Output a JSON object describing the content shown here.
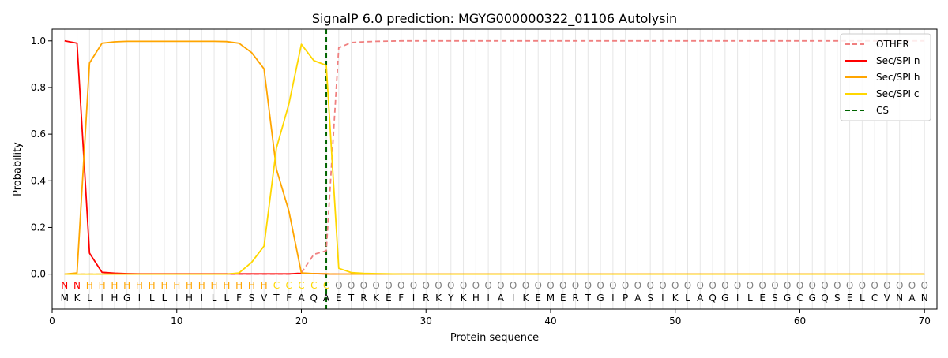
{
  "chart_data": {
    "type": "line",
    "title": "SignalP 6.0 prediction: MGYG000000322_01106 Autolysin",
    "xlabel": "Protein sequence",
    "ylabel": "Probability",
    "xlim": [
      0,
      71
    ],
    "ylim": [
      -0.15,
      1.05
    ],
    "xticks": [
      0,
      10,
      20,
      30,
      40,
      50,
      60,
      70
    ],
    "yticks": [
      0.0,
      0.2,
      0.4,
      0.6,
      0.8,
      1.0
    ],
    "xtick_labels": [
      "0",
      "10",
      "20",
      "30",
      "40",
      "50",
      "60",
      "70"
    ],
    "ytick_labels": [
      "0.0",
      "0.2",
      "0.4",
      "0.6",
      "0.8",
      "1.0"
    ],
    "grid": "vertical lines at every residue",
    "legend_position": "top-right",
    "legend": [
      "OTHER",
      "Sec/SPI n",
      "Sec/SPI h",
      "Sec/SPI c",
      "CS"
    ],
    "sequence": "MKLIHGILLIHILLFSVTFAQAETRKEFIRKYKHIAIKEMERTGIPASIKLAQGILESGCGQSELCVNAN",
    "labels": "NNHHHHHHHHHHHHHHHCCCCCOOOOOOOOOOOOOOOOOOOOOOOOOOOOOOOOOOOOOOOOOOOOOOOO",
    "label_colors": {
      "N": "#ff0000",
      "H": "#ffa500",
      "C": "#ffd700",
      "O": "#808080"
    },
    "cleavage_site": 22,
    "series": [
      {
        "name": "OTHER",
        "color": "#f08080",
        "dash": "dashed",
        "values": [
          0,
          0,
          0,
          0,
          0,
          0,
          0,
          0,
          0,
          0,
          0,
          0,
          0,
          0,
          0,
          0,
          0,
          0,
          0,
          0.005,
          0.085,
          0.1,
          0.97,
          0.993,
          0.996,
          0.998,
          0.999,
          1,
          1,
          1,
          1,
          1,
          1,
          1,
          1,
          1,
          1,
          1,
          1,
          1,
          1,
          1,
          1,
          1,
          1,
          1,
          1,
          1,
          1,
          1,
          1,
          1,
          1,
          1,
          1,
          1,
          1,
          1,
          1,
          1,
          1,
          1,
          1,
          1,
          1,
          1,
          1,
          1,
          1,
          1
        ]
      },
      {
        "name": "Sec/SPI n",
        "color": "#ff0000",
        "dash": "solid",
        "values": [
          1.0,
          0.99,
          0.09,
          0.008,
          0.004,
          0.002,
          0.001,
          0.001,
          0.001,
          0.001,
          0.001,
          0.001,
          0.001,
          0.001,
          0.001,
          0.001,
          0.001,
          0.001,
          0.001,
          0.003,
          0.002,
          0.001,
          0,
          0,
          0,
          0,
          0,
          0,
          0,
          0,
          0,
          0,
          0,
          0,
          0,
          0,
          0,
          0,
          0,
          0,
          0,
          0,
          0,
          0,
          0,
          0,
          0,
          0,
          0,
          0,
          0,
          0,
          0,
          0,
          0,
          0,
          0,
          0,
          0,
          0,
          0,
          0,
          0,
          0,
          0,
          0,
          0,
          0,
          0,
          0
        ]
      },
      {
        "name": "Sec/SPI h",
        "color": "#ffa500",
        "dash": "solid",
        "values": [
          0,
          0.005,
          0.905,
          0.99,
          0.996,
          0.998,
          0.998,
          0.998,
          0.998,
          0.998,
          0.998,
          0.998,
          0.998,
          0.997,
          0.99,
          0.95,
          0.88,
          0.45,
          0.27,
          0.005,
          0.002,
          0.001,
          0,
          0,
          0,
          0,
          0,
          0,
          0,
          0,
          0,
          0,
          0,
          0,
          0,
          0,
          0,
          0,
          0,
          0,
          0,
          0,
          0,
          0,
          0,
          0,
          0,
          0,
          0,
          0,
          0,
          0,
          0,
          0,
          0,
          0,
          0,
          0,
          0,
          0,
          0,
          0,
          0,
          0,
          0,
          0,
          0,
          0,
          0,
          0
        ]
      },
      {
        "name": "Sec/SPI c",
        "color": "#ffd700",
        "dash": "solid",
        "values": [
          0,
          0,
          0,
          0,
          0,
          0,
          0,
          0,
          0,
          0,
          0,
          0,
          0,
          0,
          0.005,
          0.05,
          0.12,
          0.54,
          0.73,
          0.985,
          0.915,
          0.895,
          0.025,
          0.007,
          0.003,
          0.002,
          0.001,
          0,
          0,
          0,
          0,
          0,
          0,
          0,
          0,
          0,
          0,
          0,
          0,
          0,
          0,
          0,
          0,
          0,
          0,
          0,
          0,
          0,
          0,
          0,
          0,
          0,
          0,
          0,
          0,
          0,
          0,
          0,
          0,
          0,
          0,
          0,
          0,
          0,
          0,
          0,
          0,
          0,
          0,
          0
        ]
      }
    ]
  }
}
